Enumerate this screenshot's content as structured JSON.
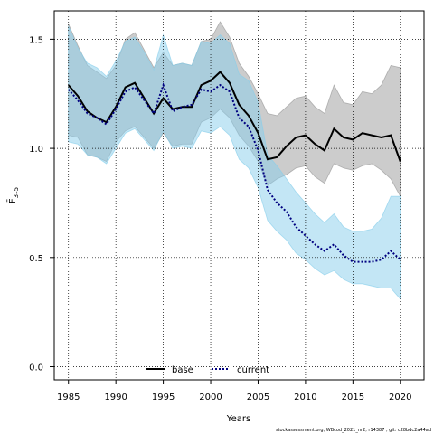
{
  "chart_data": {
    "type": "line",
    "xlabel": "Years",
    "ylabel": "F̄",
    "ylabel_sub": "3–5",
    "xlim": [
      1983.5,
      2022.5
    ],
    "ylim": [
      -0.06,
      1.63
    ],
    "xticks": [
      1985,
      1990,
      1995,
      2000,
      2005,
      2010,
      2015,
      2020
    ],
    "yticks": [
      0.0,
      0.5,
      1.0,
      1.5
    ],
    "ytick_labels": [
      "0.0",
      "0.5",
      "1.0",
      "1.5"
    ],
    "grid": true,
    "legend_position": "bottom-center",
    "footer": "stockassessment.org, WBcod_2021_nr2, r14387 , git: c28bdc2a44ad",
    "x": [
      1985,
      1986,
      1987,
      1988,
      1989,
      1990,
      1991,
      1992,
      1993,
      1994,
      1995,
      1996,
      1997,
      1998,
      1999,
      2000,
      2001,
      2002,
      2003,
      2004,
      2005,
      2006,
      2007,
      2008,
      2009,
      2010,
      2011,
      2012,
      2013,
      2014,
      2015,
      2016,
      2017,
      2018,
      2019,
      2020
    ],
    "series": [
      {
        "name": "base",
        "color": "#000000",
        "band_color": "#999999",
        "line_style": "solid",
        "values": [
          1.29,
          1.24,
          1.17,
          1.14,
          1.12,
          1.19,
          1.28,
          1.3,
          1.23,
          1.16,
          1.23,
          1.18,
          1.19,
          1.19,
          1.29,
          1.31,
          1.35,
          1.3,
          1.2,
          1.15,
          1.07,
          0.95,
          0.96,
          1.01,
          1.05,
          1.06,
          1.02,
          0.99,
          1.09,
          1.05,
          1.04,
          1.07,
          1.06,
          1.05,
          1.06,
          0.94
        ],
        "lower": [
          1.06,
          1.05,
          0.97,
          0.96,
          0.94,
          1.03,
          1.08,
          1.1,
          1.05,
          1.0,
          1.07,
          1.01,
          1.02,
          1.02,
          1.12,
          1.14,
          1.18,
          1.14,
          1.06,
          1.01,
          0.94,
          0.83,
          0.86,
          0.88,
          0.91,
          0.92,
          0.87,
          0.84,
          0.93,
          0.91,
          0.9,
          0.92,
          0.93,
          0.9,
          0.86,
          0.78
        ],
        "upper": [
          1.57,
          1.47,
          1.38,
          1.35,
          1.32,
          1.38,
          1.5,
          1.53,
          1.45,
          1.37,
          1.44,
          1.38,
          1.39,
          1.38,
          1.49,
          1.5,
          1.58,
          1.51,
          1.39,
          1.33,
          1.25,
          1.16,
          1.15,
          1.19,
          1.23,
          1.24,
          1.19,
          1.16,
          1.29,
          1.21,
          1.2,
          1.26,
          1.25,
          1.29,
          1.38,
          1.37
        ]
      },
      {
        "name": "current",
        "color": "#000080",
        "band_color": "#87ceeb",
        "line_style": "dotted",
        "values": [
          1.27,
          1.22,
          1.16,
          1.14,
          1.11,
          1.18,
          1.26,
          1.28,
          1.22,
          1.16,
          1.29,
          1.17,
          1.19,
          1.2,
          1.27,
          1.26,
          1.29,
          1.26,
          1.14,
          1.1,
          0.99,
          0.81,
          0.75,
          0.71,
          0.64,
          0.6,
          0.56,
          0.53,
          0.56,
          0.51,
          0.48,
          0.48,
          0.48,
          0.49,
          0.53,
          0.49
        ],
        "lower": [
          1.03,
          1.02,
          0.97,
          0.96,
          0.93,
          1.0,
          1.07,
          1.09,
          1.04,
          0.99,
          1.08,
          1.0,
          1.01,
          1.0,
          1.08,
          1.07,
          1.1,
          1.06,
          0.95,
          0.91,
          0.82,
          0.67,
          0.62,
          0.58,
          0.52,
          0.49,
          0.45,
          0.42,
          0.44,
          0.4,
          0.38,
          0.38,
          0.37,
          0.36,
          0.36,
          0.31
        ],
        "upper": [
          1.56,
          1.46,
          1.39,
          1.37,
          1.33,
          1.4,
          1.49,
          1.51,
          1.44,
          1.36,
          1.52,
          1.38,
          1.39,
          1.38,
          1.49,
          1.48,
          1.52,
          1.48,
          1.34,
          1.31,
          1.21,
          0.97,
          0.92,
          0.86,
          0.8,
          0.75,
          0.7,
          0.66,
          0.7,
          0.64,
          0.62,
          0.62,
          0.63,
          0.68,
          0.78,
          0.78
        ]
      }
    ]
  }
}
